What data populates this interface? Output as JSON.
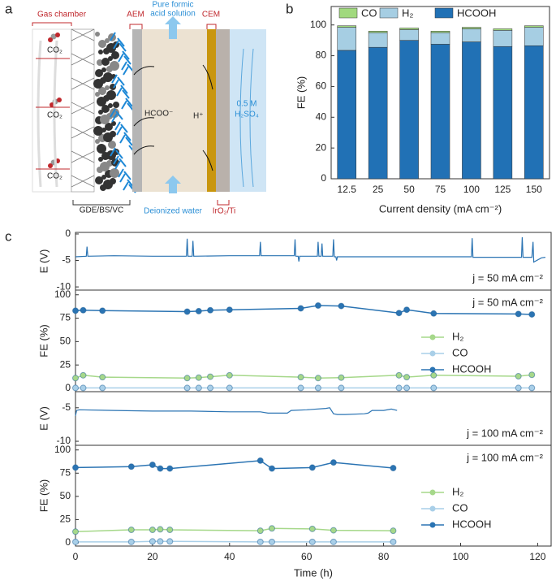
{
  "panel_labels": [
    "a",
    "b",
    "c"
  ],
  "diagram": {
    "gas_chamber": "Gas chamber",
    "aem": "AEM",
    "product": [
      "Pure formic",
      "acid solution"
    ],
    "cem": "CEM",
    "co2": [
      "CO₂",
      "CO₂",
      "CO₂"
    ],
    "formate": "HCOO⁻",
    "proton": "H⁺",
    "acid": [
      "0.5 M",
      "H₂SO₄"
    ],
    "gde": "GDE/BS/VC",
    "water": "Deionized water",
    "anode": "IrO₂/Ti"
  },
  "chart_data": [
    {
      "type": "stacked-bar",
      "xlabel": "Current density (mA cm⁻²)",
      "ylabel": "FE (%)",
      "categories": [
        "12.5",
        "25",
        "50",
        "75",
        "100",
        "125",
        "150"
      ],
      "series": [
        {
          "name": "HCOOH",
          "color": "#2171b5",
          "values": [
            83.5,
            85.5,
            90,
            87.5,
            89,
            86,
            86.5
          ]
        },
        {
          "name": "H₂",
          "color": "#a6cee3",
          "values": [
            15,
            9.5,
            7,
            7.5,
            8.5,
            10.5,
            12
          ]
        },
        {
          "name": "CO",
          "color": "#a1d97e",
          "values": [
            1,
            1,
            1,
            1,
            1,
            1,
            1
          ]
        }
      ],
      "ylim": [
        0,
        112
      ],
      "yticks": [
        0,
        20,
        40,
        60,
        80,
        100
      ]
    },
    {
      "type": "line",
      "ylabel": "E (V)",
      "annotation": "j = 50 mA cm⁻²",
      "xlim": [
        0,
        123.5
      ],
      "ylim": [
        -10.6,
        0.3
      ],
      "yticks": [
        0,
        -5,
        -10
      ],
      "x": [
        0,
        2.8,
        3,
        3.2,
        10,
        20,
        28.8,
        29,
        29.2,
        30.3,
        30.5,
        30.7,
        40,
        47.8,
        48,
        48.2,
        56.8,
        57,
        57.2,
        57.8,
        58,
        58.2,
        62.8,
        63,
        63.2,
        63.8,
        64,
        64.2,
        66.8,
        67,
        67.2,
        67.6,
        67.8,
        68,
        80,
        90,
        102.8,
        103,
        103.2,
        110,
        115.8,
        116,
        116.2,
        118.5,
        118.8,
        119,
        121,
        122
      ],
      "series": [
        {
          "color": "#2b74b3",
          "markers": false,
          "values": [
            -4.3,
            -4.2,
            -2.4,
            -4.2,
            -4.1,
            -4.2,
            -4.2,
            -0.9,
            -4.2,
            -4.2,
            -1.3,
            -4.2,
            -4.1,
            -4.1,
            -1.5,
            -4.1,
            -4.1,
            -1.0,
            -4.2,
            -4.2,
            -5.2,
            -4.2,
            -4.2,
            -1.5,
            -4.2,
            -4.2,
            -1.8,
            -4.2,
            -4.2,
            -1.0,
            -4.3,
            -4.3,
            -5.0,
            -4.3,
            -4.3,
            -4.3,
            -4.3,
            -0.8,
            -4.4,
            -4.4,
            -4.4,
            -0.6,
            -4.4,
            -4.4,
            -1.5,
            -5.3,
            -4.5,
            -4.4
          ]
        }
      ]
    },
    {
      "type": "line",
      "ylabel": "FE (%)",
      "annotation": "j = 50 mA cm⁻²",
      "legend": "right",
      "xlim": [
        0,
        123.5
      ],
      "ylim": [
        -3.5,
        105
      ],
      "yticks": [
        0,
        25,
        50,
        75,
        100
      ],
      "x": [
        0,
        2,
        7,
        29,
        32,
        35,
        40,
        58.5,
        63,
        69,
        84,
        86,
        93,
        115,
        118.5
      ],
      "series": [
        {
          "name": "H₂",
          "color": "#a6d88a",
          "markers": true,
          "values": [
            11,
            14,
            12,
            11,
            11.5,
            12.5,
            14,
            12,
            11,
            11.5,
            14,
            12,
            14,
            13,
            14.5
          ]
        },
        {
          "name": "CO",
          "color": "#a9cfe8",
          "markers": true,
          "values": [
            0.5,
            0.5,
            0.5,
            0.5,
            0.5,
            0.5,
            0.5,
            0.5,
            0.5,
            0.5,
            0.5,
            0.5,
            0.5,
            0.5,
            0.5
          ]
        },
        {
          "name": "HCOOH",
          "color": "#2b74b3",
          "markers": true,
          "values": [
            83,
            83.5,
            83,
            82,
            82.5,
            83.5,
            84,
            85.5,
            88.5,
            88,
            80.5,
            84,
            80,
            79.5,
            79
          ]
        }
      ]
    },
    {
      "type": "line",
      "ylabel": "E (V)",
      "annotation": "j = 100 mA cm⁻²",
      "xlim": [
        0,
        123.5
      ],
      "ylim": [
        -10.6,
        -2.6
      ],
      "yticks": [
        -5,
        -10
      ],
      "x": [
        0,
        0.3,
        1,
        10,
        20,
        30,
        40,
        48,
        50,
        55,
        56,
        60,
        65,
        66,
        67,
        68,
        70,
        75,
        76,
        77,
        80,
        82,
        83.5
      ],
      "series": [
        {
          "color": "#2b74b3",
          "markers": false,
          "values": [
            -6.2,
            -5.4,
            -5.3,
            -5.4,
            -5.5,
            -5.5,
            -5.6,
            -5.6,
            -5.8,
            -5.8,
            -5.4,
            -5.3,
            -5.1,
            -5.0,
            -5.9,
            -6.0,
            -6.0,
            -5.9,
            -5.8,
            -5.4,
            -5.4,
            -5.2,
            -5.4
          ]
        }
      ]
    },
    {
      "type": "line",
      "ylabel": "FE (%)",
      "xlabel": "Time (h)",
      "annotation": "j = 100 mA cm⁻²",
      "legend": "right",
      "xlim": [
        0,
        123.5
      ],
      "ylim": [
        -3.5,
        105
      ],
      "yticks": [
        0,
        25,
        50,
        75,
        100
      ],
      "xticks": [
        0,
        20,
        40,
        60,
        80,
        100,
        120
      ],
      "x": [
        0,
        14.5,
        20,
        22,
        24.5,
        48,
        51,
        61.5,
        67,
        82.5
      ],
      "series": [
        {
          "name": "H₂",
          "color": "#a6d88a",
          "markers": true,
          "values": [
            12,
            14,
            14,
            14.5,
            14,
            13,
            15.5,
            15,
            13.5,
            13
          ]
        },
        {
          "name": "CO",
          "color": "#a9cfe8",
          "markers": true,
          "values": [
            1,
            1,
            1.5,
            1.5,
            1.5,
            1,
            1,
            1,
            1,
            1
          ]
        },
        {
          "name": "HCOOH",
          "color": "#2b74b3",
          "markers": true,
          "values": [
            81,
            82,
            84,
            80,
            80,
            88.5,
            80,
            81,
            86.5,
            80.5
          ]
        }
      ]
    }
  ]
}
